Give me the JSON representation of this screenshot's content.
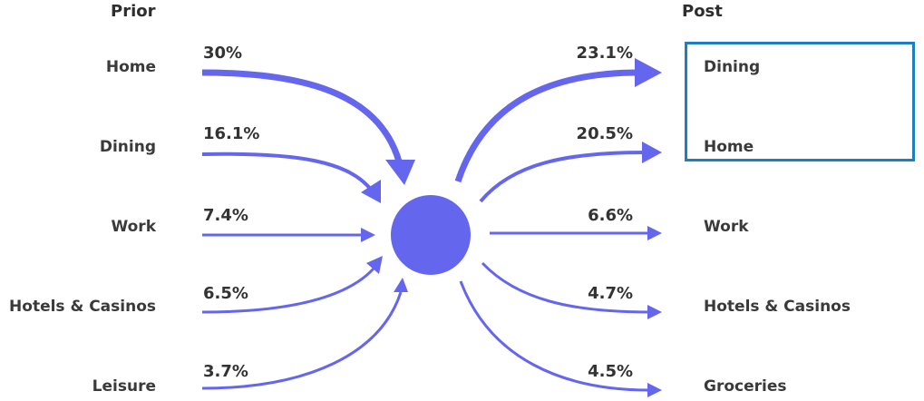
{
  "headers": {
    "prior": "Prior",
    "post": "Post"
  },
  "prior": [
    {
      "label": "Home",
      "pct": "30%"
    },
    {
      "label": "Dining",
      "pct": "16.1%"
    },
    {
      "label": "Work",
      "pct": "7.4%"
    },
    {
      "label": "Hotels & Casinos",
      "pct": "6.5%"
    },
    {
      "label": "Leisure",
      "pct": "3.7%"
    }
  ],
  "post": [
    {
      "label": "Dining",
      "pct": "23.1%"
    },
    {
      "label": "Home",
      "pct": "20.5%"
    },
    {
      "label": "Work",
      "pct": "6.6%"
    },
    {
      "label": "Hotels & Casinos",
      "pct": "4.7%"
    },
    {
      "label": "Groceries",
      "pct": "4.5%"
    }
  ],
  "colors": {
    "flow": "#6566ee",
    "hub": "#6566ee",
    "highlight": "#1d7fc2",
    "text": "#3a3a3a"
  }
}
